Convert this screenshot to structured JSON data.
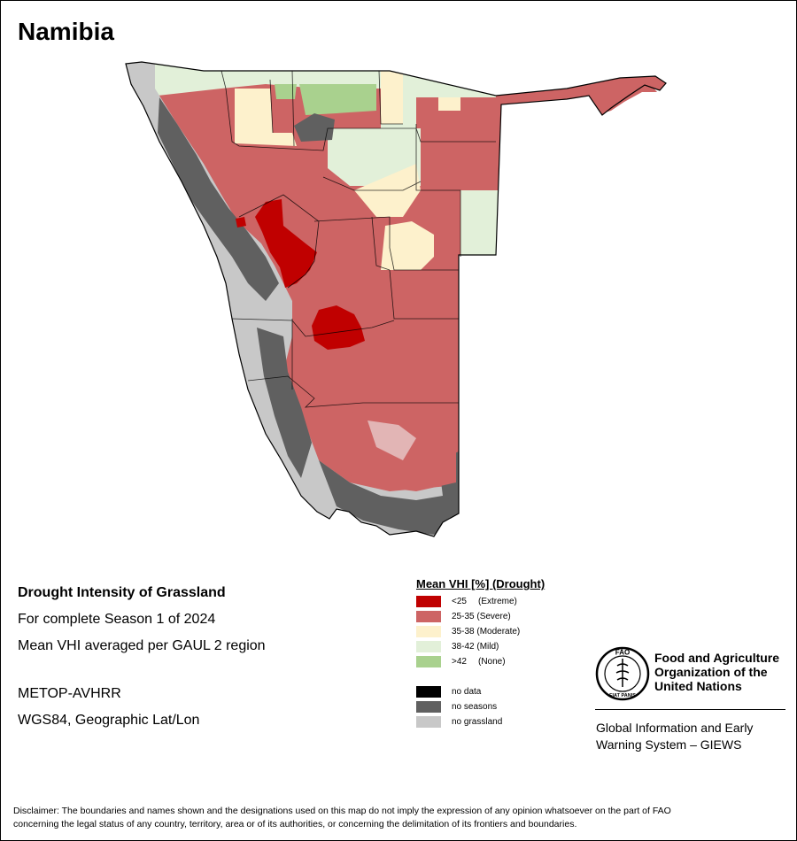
{
  "map_title": "Namibia",
  "info": {
    "heading": "Drought Intensity of Grassland",
    "season": "For complete Season 1 of 2024",
    "method": "Mean VHI averaged per GAUL 2 region",
    "sensor": "METOP-AVHRR",
    "projection": "WGS84, Geographic Lat/Lon"
  },
  "legend": {
    "title": "Mean VHI [%] (Drought)",
    "classes": [
      {
        "range": "<25",
        "label": "(Extreme)",
        "color": "#c00000"
      },
      {
        "range": "25-35",
        "label": "(Severe)",
        "color": "#cd6464"
      },
      {
        "range": "35-38",
        "label": "(Moderate)",
        "color": "#fdf1cc"
      },
      {
        "range": "38-42",
        "label": "(Mild)",
        "color": "#e2f0d9"
      },
      {
        "range": ">42",
        "label": "(None)",
        "color": "#a9d18e"
      }
    ],
    "other": [
      {
        "label": "no data",
        "color": "#000000"
      },
      {
        "label": "no seasons",
        "color": "#606060"
      },
      {
        "label": "no grassland",
        "color": "#c8c8c8"
      }
    ]
  },
  "org": {
    "logo_letters": "FAO",
    "logo_motto": "FIAT PANIS",
    "name_line1": "Food and Agriculture",
    "name_line2": "Organization of the",
    "name_line3": "United Nations",
    "system_line1": "Global Information and Early",
    "system_line2": "Warning System – GIEWS"
  },
  "disclaimer_line1": "Disclaimer: The boundaries and names shown and the designations used on this map do not imply the expression of any opinion whatsoever on the part of FAO",
  "disclaimer_line2": "concerning the legal status of any country, territory, area or of its authorities, or concerning the delimitation of its frontiers and boundaries."
}
